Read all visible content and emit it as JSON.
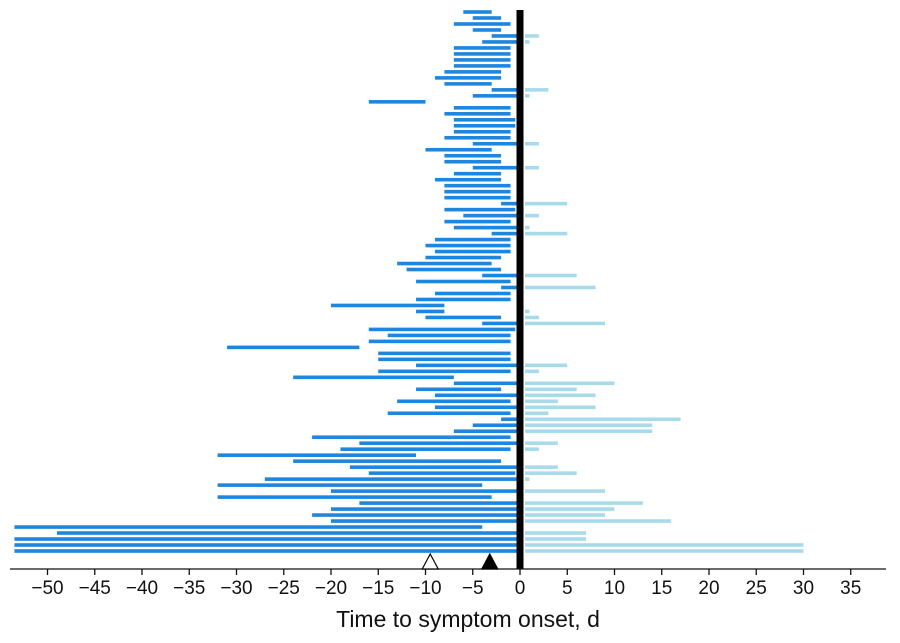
{
  "chart_data": {
    "type": "bar",
    "subtype": "horizontal-range",
    "title": "",
    "xlabel": "Time to symptom onset, d",
    "ylabel": "",
    "xlim": [
      -53.5,
      39
    ],
    "xticks": [
      -50,
      -45,
      -40,
      -35,
      -30,
      -25,
      -20,
      -15,
      -10,
      -5,
      0,
      5,
      10,
      15,
      20,
      25,
      30,
      35
    ],
    "xtick_labels": [
      "−50",
      "−45",
      "−40",
      "−35",
      "−30",
      "−25",
      "−20",
      "−15",
      "−10",
      "−5",
      "0",
      "5",
      "10",
      "15",
      "20",
      "25",
      "30",
      "35"
    ],
    "grid": false,
    "legend": "none",
    "colors": {
      "before_onset": "#1f86e0",
      "after_onset": "#a8dbea",
      "onset_line": "#000000",
      "marker_open_fill": "#ffffff",
      "marker_open_stroke": "#000000",
      "marker_filled": "#000000"
    },
    "markers": [
      {
        "kind": "open-triangle",
        "x": -9.5
      },
      {
        "kind": "filled-triangle",
        "x": -3.2
      }
    ],
    "rows": [
      {
        "pre": [
          -6,
          -3
        ],
        "post": null
      },
      {
        "pre": [
          -5,
          -2
        ],
        "post": null
      },
      {
        "pre": [
          -7,
          -1
        ],
        "post": null
      },
      {
        "pre": [
          -5,
          -2
        ],
        "post": null
      },
      {
        "pre": [
          -3,
          0
        ],
        "post": [
          0,
          2
        ]
      },
      {
        "pre": [
          -4,
          0
        ],
        "post": [
          0,
          1
        ]
      },
      {
        "pre": [
          -7,
          -1
        ],
        "post": null
      },
      {
        "pre": [
          -7,
          -1
        ],
        "post": null
      },
      {
        "pre": [
          -7,
          -1
        ],
        "post": null
      },
      {
        "pre": [
          -7,
          -1
        ],
        "post": null
      },
      {
        "pre": [
          -8,
          -2
        ],
        "post": null
      },
      {
        "pre": [
          -9,
          -2
        ],
        "post": null
      },
      {
        "pre": [
          -8,
          -3
        ],
        "post": null
      },
      {
        "pre": [
          -3,
          0
        ],
        "post": [
          0,
          3
        ]
      },
      {
        "pre": [
          -5,
          0
        ],
        "post": [
          0,
          1
        ]
      },
      {
        "pre": [
          -16,
          -10
        ],
        "post": null
      },
      {
        "pre": [
          -7,
          -1
        ],
        "post": null
      },
      {
        "pre": [
          -8,
          -1
        ],
        "post": null
      },
      {
        "pre": [
          -7,
          -0.5
        ],
        "post": null
      },
      {
        "pre": [
          -7,
          -0.5
        ],
        "post": null
      },
      {
        "pre": [
          -7,
          -1
        ],
        "post": null
      },
      {
        "pre": [
          -8,
          -1
        ],
        "post": null
      },
      {
        "pre": [
          -5,
          0
        ],
        "post": [
          0,
          2
        ]
      },
      {
        "pre": [
          -10,
          -3
        ],
        "post": null
      },
      {
        "pre": [
          -8,
          -2
        ],
        "post": null
      },
      {
        "pre": [
          -8,
          -2
        ],
        "post": null
      },
      {
        "pre": [
          -5,
          0
        ],
        "post": [
          0,
          2
        ]
      },
      {
        "pre": [
          -7,
          -2
        ],
        "post": null
      },
      {
        "pre": [
          -9,
          -2
        ],
        "post": null
      },
      {
        "pre": [
          -8,
          -1
        ],
        "post": null
      },
      {
        "pre": [
          -8,
          -1
        ],
        "post": null
      },
      {
        "pre": [
          -8,
          -1
        ],
        "post": null
      },
      {
        "pre": [
          -2,
          0
        ],
        "post": [
          0,
          5
        ]
      },
      {
        "pre": [
          -8,
          -0.5
        ],
        "post": null
      },
      {
        "pre": [
          -6,
          0
        ],
        "post": [
          0,
          2
        ]
      },
      {
        "pre": [
          -8,
          -1
        ],
        "post": null
      },
      {
        "pre": [
          -7,
          0
        ],
        "post": [
          0,
          1
        ]
      },
      {
        "pre": [
          -3,
          0
        ],
        "post": [
          0,
          5
        ]
      },
      {
        "pre": [
          -9,
          -1
        ],
        "post": null
      },
      {
        "pre": [
          -10,
          -1
        ],
        "post": null
      },
      {
        "pre": [
          -9,
          -1
        ],
        "post": null
      },
      {
        "pre": [
          -10,
          -2
        ],
        "post": null
      },
      {
        "pre": [
          -13,
          -3
        ],
        "post": null
      },
      {
        "pre": [
          -12,
          -2
        ],
        "post": null
      },
      {
        "pre": [
          -4,
          0
        ],
        "post": [
          0,
          6
        ]
      },
      {
        "pre": [
          -11,
          -1
        ],
        "post": null
      },
      {
        "pre": [
          -2,
          0
        ],
        "post": [
          0,
          8
        ]
      },
      {
        "pre": [
          -9,
          -1
        ],
        "post": null
      },
      {
        "pre": [
          -11,
          -1
        ],
        "post": null
      },
      {
        "pre": [
          -20,
          -8
        ],
        "post": null
      },
      {
        "pre": [
          -11,
          -8
        ],
        "post": [
          0,
          1
        ]
      },
      {
        "pre": [
          -10,
          -2
        ],
        "post": [
          0,
          2
        ]
      },
      {
        "pre": [
          -4,
          0
        ],
        "post": [
          0,
          9
        ]
      },
      {
        "pre": [
          -16,
          -0.5
        ],
        "post": null
      },
      {
        "pre": [
          -14,
          -1
        ],
        "post": null
      },
      {
        "pre": [
          -16,
          -1
        ],
        "post": null
      },
      {
        "pre": [
          -31,
          -17
        ],
        "post": null
      },
      {
        "pre": [
          -15,
          -1
        ],
        "post": null
      },
      {
        "pre": [
          -15,
          -1
        ],
        "post": null
      },
      {
        "pre": [
          -11,
          0
        ],
        "post": [
          0,
          5
        ]
      },
      {
        "pre": [
          -15,
          -1
        ],
        "post": [
          0,
          2
        ]
      },
      {
        "pre": [
          -24,
          -7
        ],
        "post": null
      },
      {
        "pre": [
          -7,
          0
        ],
        "post": [
          0,
          10
        ]
      },
      {
        "pre": [
          -11,
          -2
        ],
        "post": [
          0,
          6
        ]
      },
      {
        "pre": [
          -9,
          0
        ],
        "post": [
          0,
          8
        ]
      },
      {
        "pre": [
          -13,
          -1
        ],
        "post": [
          0,
          4
        ]
      },
      {
        "pre": [
          -9,
          0
        ],
        "post": [
          0,
          8
        ]
      },
      {
        "pre": [
          -14,
          -1
        ],
        "post": [
          0,
          3
        ]
      },
      {
        "pre": [
          -2,
          0
        ],
        "post": [
          0,
          17
        ]
      },
      {
        "pre": [
          -5,
          0
        ],
        "post": [
          0,
          14
        ]
      },
      {
        "pre": [
          -7,
          0
        ],
        "post": [
          0,
          14
        ]
      },
      {
        "pre": [
          -22,
          -1
        ],
        "post": null
      },
      {
        "pre": [
          -17,
          0
        ],
        "post": [
          0,
          4
        ]
      },
      {
        "pre": [
          -19,
          -1
        ],
        "post": [
          0,
          2
        ]
      },
      {
        "pre": [
          -32,
          -11
        ],
        "post": null
      },
      {
        "pre": [
          -24,
          -2
        ],
        "post": null
      },
      {
        "pre": [
          -18,
          0
        ],
        "post": [
          0,
          4
        ]
      },
      {
        "pre": [
          -16,
          -0.5
        ],
        "post": [
          0,
          6
        ]
      },
      {
        "pre": [
          -27,
          0
        ],
        "post": [
          0,
          1
        ]
      },
      {
        "pre": [
          -32,
          -4
        ],
        "post": null
      },
      {
        "pre": [
          -20,
          0
        ],
        "post": [
          0,
          9
        ]
      },
      {
        "pre": [
          -32,
          -3
        ],
        "post": null
      },
      {
        "pre": [
          -17,
          0
        ],
        "post": [
          0,
          13
        ]
      },
      {
        "pre": [
          -20,
          0
        ],
        "post": [
          0,
          10
        ]
      },
      {
        "pre": [
          -22,
          0
        ],
        "post": [
          0,
          9
        ]
      },
      {
        "pre": [
          -20,
          0
        ],
        "post": [
          0,
          16
        ]
      },
      {
        "pre": [
          -54,
          -4
        ],
        "post": null
      },
      {
        "pre": [
          -49,
          0
        ],
        "post": [
          0,
          7
        ]
      },
      {
        "pre": [
          -54,
          0
        ],
        "post": [
          0,
          7
        ]
      },
      {
        "pre": [
          -54,
          0
        ],
        "post": [
          0,
          30
        ]
      },
      {
        "pre": [
          -54,
          0
        ],
        "post": [
          0,
          30
        ]
      }
    ]
  }
}
